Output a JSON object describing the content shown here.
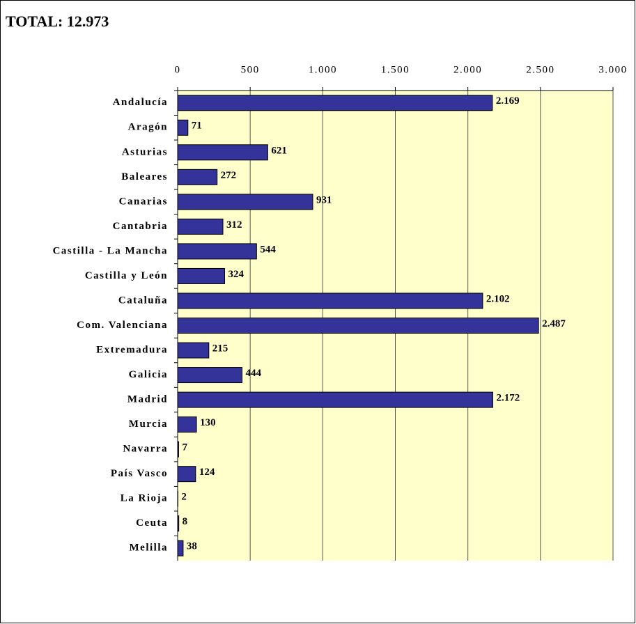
{
  "chart_data": {
    "type": "bar",
    "orientation": "horizontal",
    "title": "TOTAL: 12.973",
    "categories": [
      "Andalucía",
      "Aragón",
      "Asturias",
      "Baleares",
      "Canarias",
      "Cantabria",
      "Castilla - La Mancha",
      "Castilla y León",
      "Cataluña",
      "Com. Valenciana",
      "Extremadura",
      "Galicia",
      "Madrid",
      "Murcia",
      "Navarra",
      "País Vasco",
      "La Rioja",
      "Ceuta",
      "Melilla"
    ],
    "values": [
      2169,
      71,
      621,
      272,
      931,
      312,
      544,
      324,
      2102,
      2487,
      215,
      444,
      2172,
      130,
      7,
      124,
      2,
      8,
      38
    ],
    "value_labels": [
      "2.169",
      "71",
      "621",
      "272",
      "931",
      "312",
      "544",
      "324",
      "2.102",
      "2.487",
      "215",
      "444",
      "2.172",
      "130",
      "7",
      "124",
      "2",
      "8",
      "38"
    ],
    "color": "#333399",
    "plot_background": "#ffffcc",
    "grid": true,
    "xlim": [
      0,
      3000
    ],
    "xticks": [
      0,
      500,
      {
        "value": 1000,
        "label": "1.000"
      },
      {
        "value": 1500,
        "label": "1.500"
      },
      {
        "value": 2000,
        "label": "2.000"
      },
      {
        "value": 2500,
        "label": "2.500"
      },
      {
        "value": 3000,
        "label": "3.000"
      }
    ]
  }
}
